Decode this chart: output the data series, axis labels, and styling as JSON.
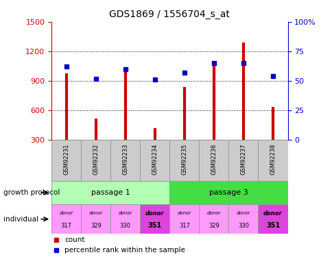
{
  "title": "GDS1869 / 1556704_s_at",
  "samples": [
    "GSM92231",
    "GSM92232",
    "GSM92233",
    "GSM92234",
    "GSM92235",
    "GSM92236",
    "GSM92237",
    "GSM92238"
  ],
  "counts": [
    975,
    520,
    1020,
    420,
    840,
    1080,
    1290,
    640
  ],
  "percentiles": [
    62,
    52,
    60,
    51,
    57,
    65,
    65,
    54
  ],
  "ylim_left": [
    300,
    1500
  ],
  "ylim_right": [
    0,
    100
  ],
  "yticks_left": [
    300,
    600,
    900,
    1200,
    1500
  ],
  "yticks_right": [
    0,
    25,
    50,
    75,
    100
  ],
  "bar_color": "#cc0000",
  "dot_color": "#0000cc",
  "passage1_color": "#b3ffb3",
  "passage3_color": "#44dd44",
  "donor_light_color": "#ff99ff",
  "donor_dark_color": "#dd44dd",
  "sample_box_color": "#cccccc",
  "donors": [
    "317",
    "329",
    "330",
    "351",
    "317",
    "329",
    "330",
    "351"
  ],
  "donor_bold": [
    false,
    false,
    false,
    true,
    false,
    false,
    false,
    true
  ],
  "passage_labels": [
    "passage 1",
    "passage 3"
  ],
  "growth_protocol_label": "growth protocol",
  "individual_label": "individual",
  "legend_count": "count",
  "legend_percentile": "percentile rank within the sample",
  "tick_color_left": "#cc0000",
  "tick_color_right": "#0000cc"
}
